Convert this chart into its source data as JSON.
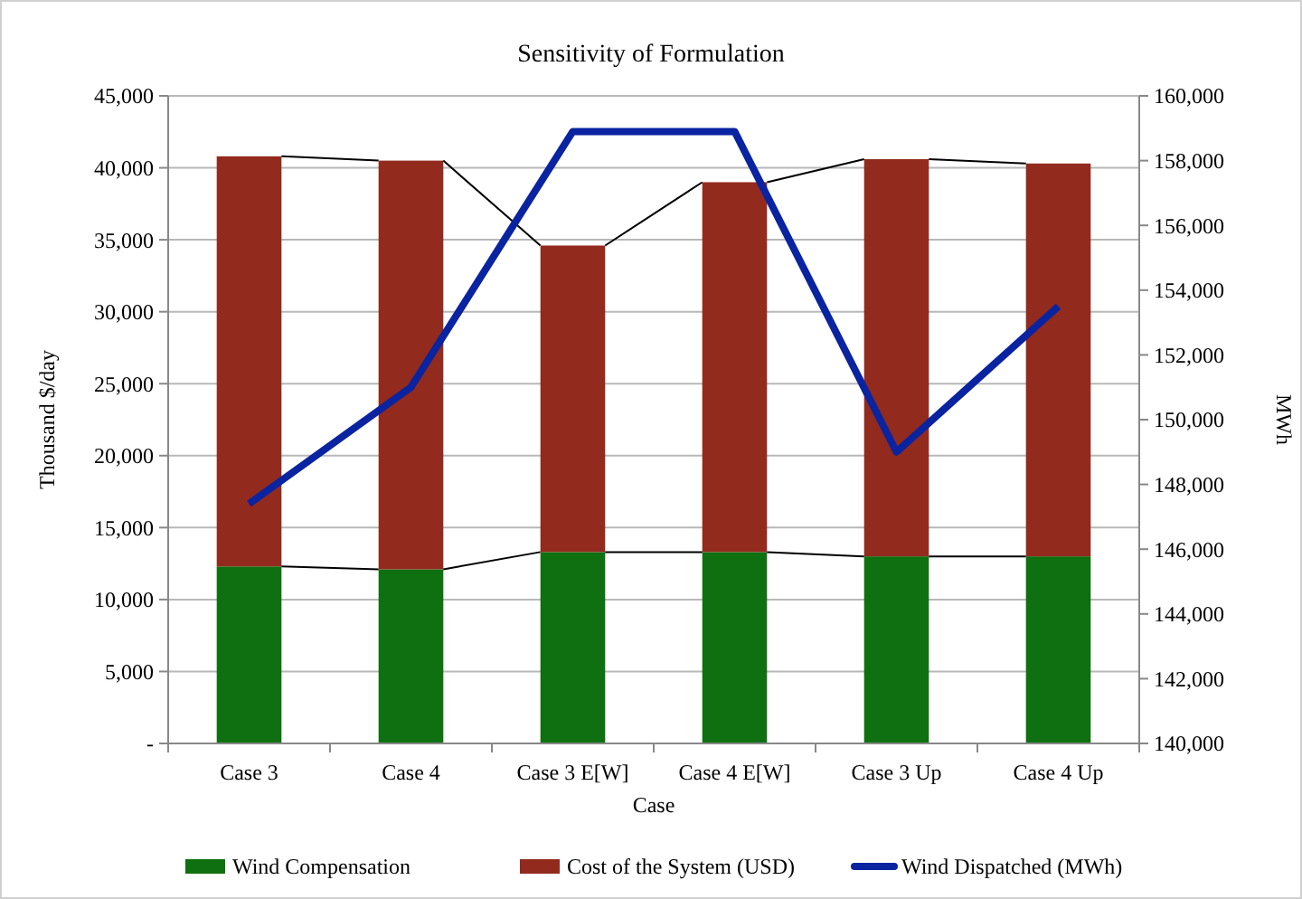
{
  "chart_data": {
    "type": "bar",
    "title": "Sensitivity of Formulation",
    "xlabel": "Case",
    "ylabel": "Thousand $/day",
    "y2label": "MWh",
    "categories": [
      "Case 3",
      "Case 4",
      "Case 3 E[W]",
      "Case 4 E[W]",
      "Case 3 Up",
      "Case 4 Up"
    ],
    "stacked": true,
    "series": [
      {
        "name": "Wind Compensation",
        "color": "#0e7010",
        "values": [
          12300,
          12100,
          13300,
          13300,
          13000,
          13000
        ]
      },
      {
        "name": "Cost of the System (USD)",
        "color": "#922a1d",
        "values": [
          28500,
          28400,
          21300,
          25700,
          27600,
          27300
        ]
      },
      {
        "name": "Wind Dispatched (MWh)",
        "type": "line",
        "axis": "y2",
        "color": "#0a23a0",
        "values": [
          147400,
          151000,
          158900,
          158900,
          149000,
          153500
        ]
      }
    ],
    "ylim": [
      0,
      45000
    ],
    "yticks": [
      {
        "value": 0,
        "label": "-"
      },
      {
        "value": 5000,
        "label": "5,000"
      },
      {
        "value": 10000,
        "label": "10,000"
      },
      {
        "value": 15000,
        "label": "15,000"
      },
      {
        "value": 20000,
        "label": "20,000"
      },
      {
        "value": 25000,
        "label": "25,000"
      },
      {
        "value": 30000,
        "label": "30,000"
      },
      {
        "value": 35000,
        "label": "35,000"
      },
      {
        "value": 40000,
        "label": "40,000"
      },
      {
        "value": 45000,
        "label": "45,000"
      }
    ],
    "y2lim": [
      140000,
      160000
    ],
    "y2ticks": [
      {
        "value": 140000,
        "label": "140,000"
      },
      {
        "value": 142000,
        "label": "142,000"
      },
      {
        "value": 144000,
        "label": "144,000"
      },
      {
        "value": 146000,
        "label": "146,000"
      },
      {
        "value": 148000,
        "label": "148,000"
      },
      {
        "value": 150000,
        "label": "150,000"
      },
      {
        "value": 152000,
        "label": "152,000"
      },
      {
        "value": 154000,
        "label": "154,000"
      },
      {
        "value": 156000,
        "label": "156,000"
      },
      {
        "value": 158000,
        "label": "158,000"
      },
      {
        "value": 160000,
        "label": "160,000"
      }
    ],
    "grid": "y",
    "legend": "bottom"
  }
}
